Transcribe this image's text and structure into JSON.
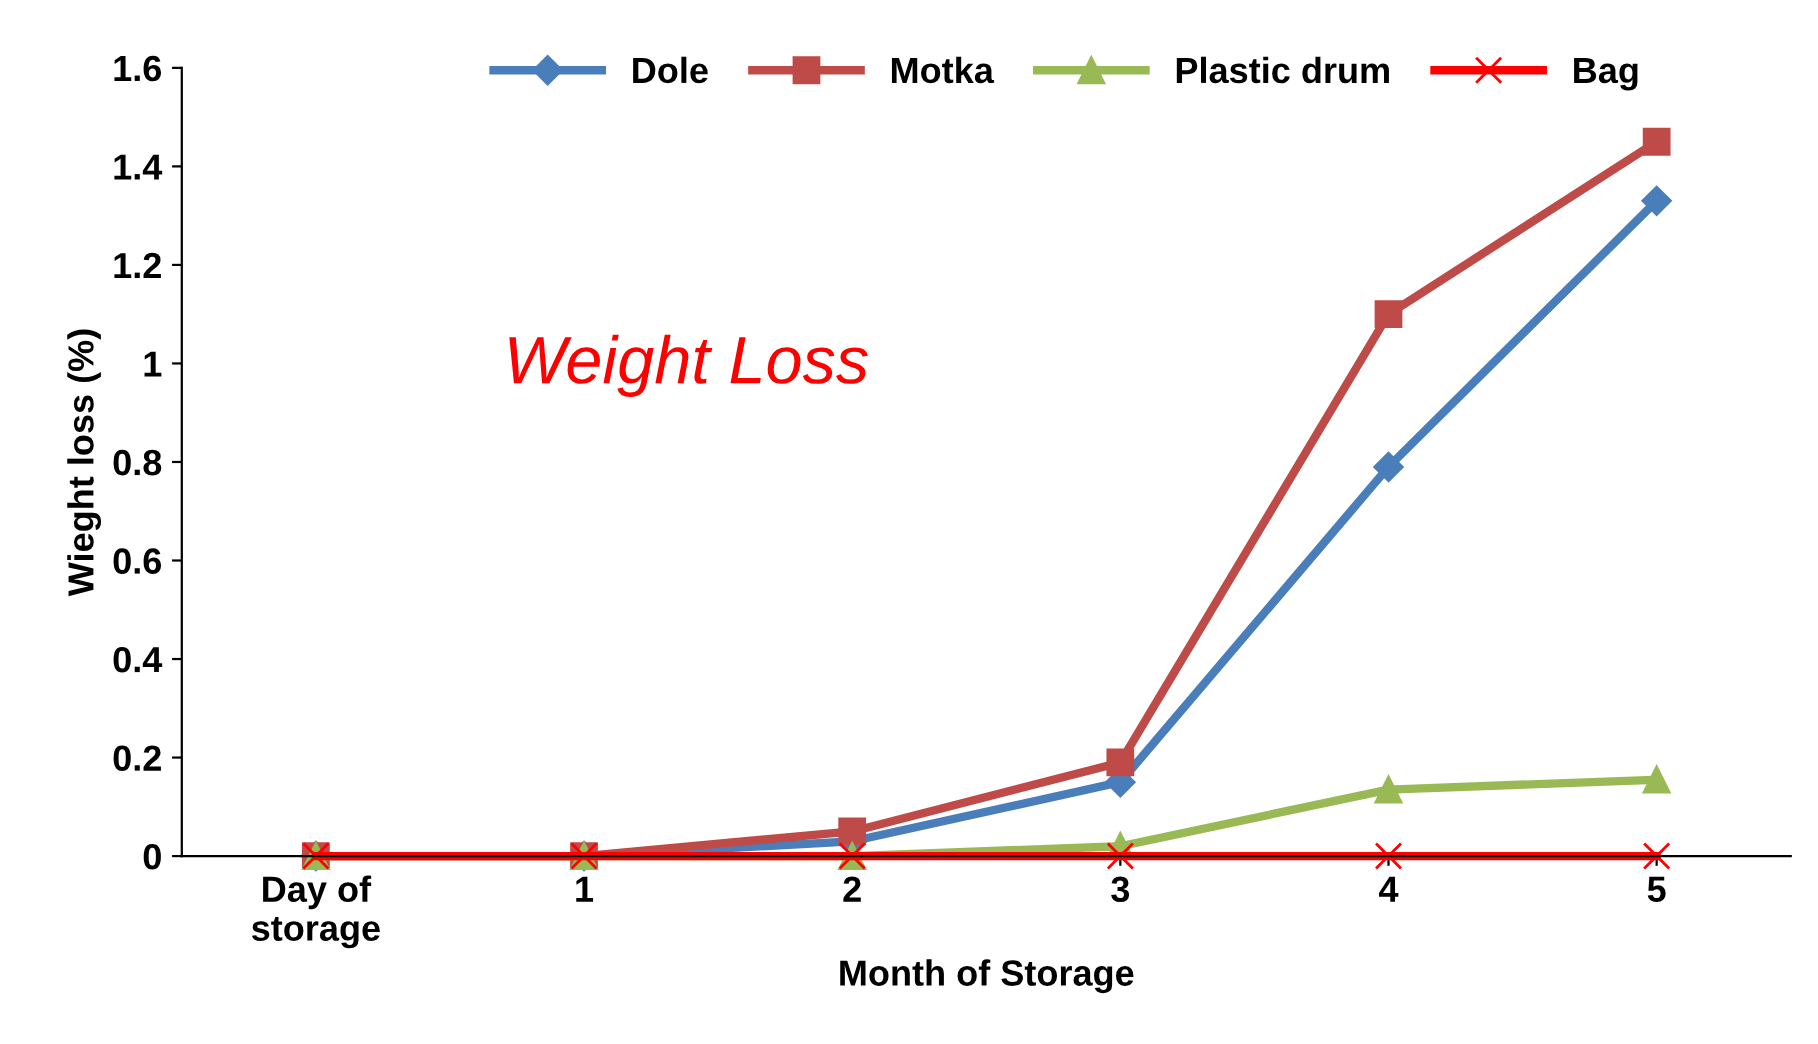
{
  "chart_data": {
    "type": "line",
    "xlabel": "Month of Storage",
    "ylabel": "Wieght loss (%)",
    "categories": [
      "Day of\nstorage",
      "1",
      "2",
      "3",
      "4",
      "5"
    ],
    "series": [
      {
        "name": "Dole",
        "color": "#4a7ebb",
        "marker": "diamond",
        "values": [
          0,
          0,
          0.03,
          0.15,
          0.79,
          1.33
        ]
      },
      {
        "name": "Motka",
        "color": "#be4b48",
        "marker": "square",
        "values": [
          0,
          0,
          0.05,
          0.19,
          1.1,
          1.45
        ]
      },
      {
        "name": "Plastic drum",
        "color": "#98b954",
        "marker": "triangle",
        "values": [
          0,
          0,
          0,
          0.02,
          0.135,
          0.155
        ]
      },
      {
        "name": "Bag",
        "color": "#ff0000",
        "marker": "cross",
        "values": [
          0,
          0,
          0,
          0,
          0,
          0
        ]
      }
    ],
    "ylim": [
      0,
      1.6
    ],
    "yticks": [
      0,
      0.2,
      0.4,
      0.6,
      0.8,
      1,
      1.2,
      1.4,
      1.6
    ],
    "annotations": [
      "Weight Loss"
    ],
    "legend": "top",
    "grid": false,
    "line_style": "solid"
  }
}
